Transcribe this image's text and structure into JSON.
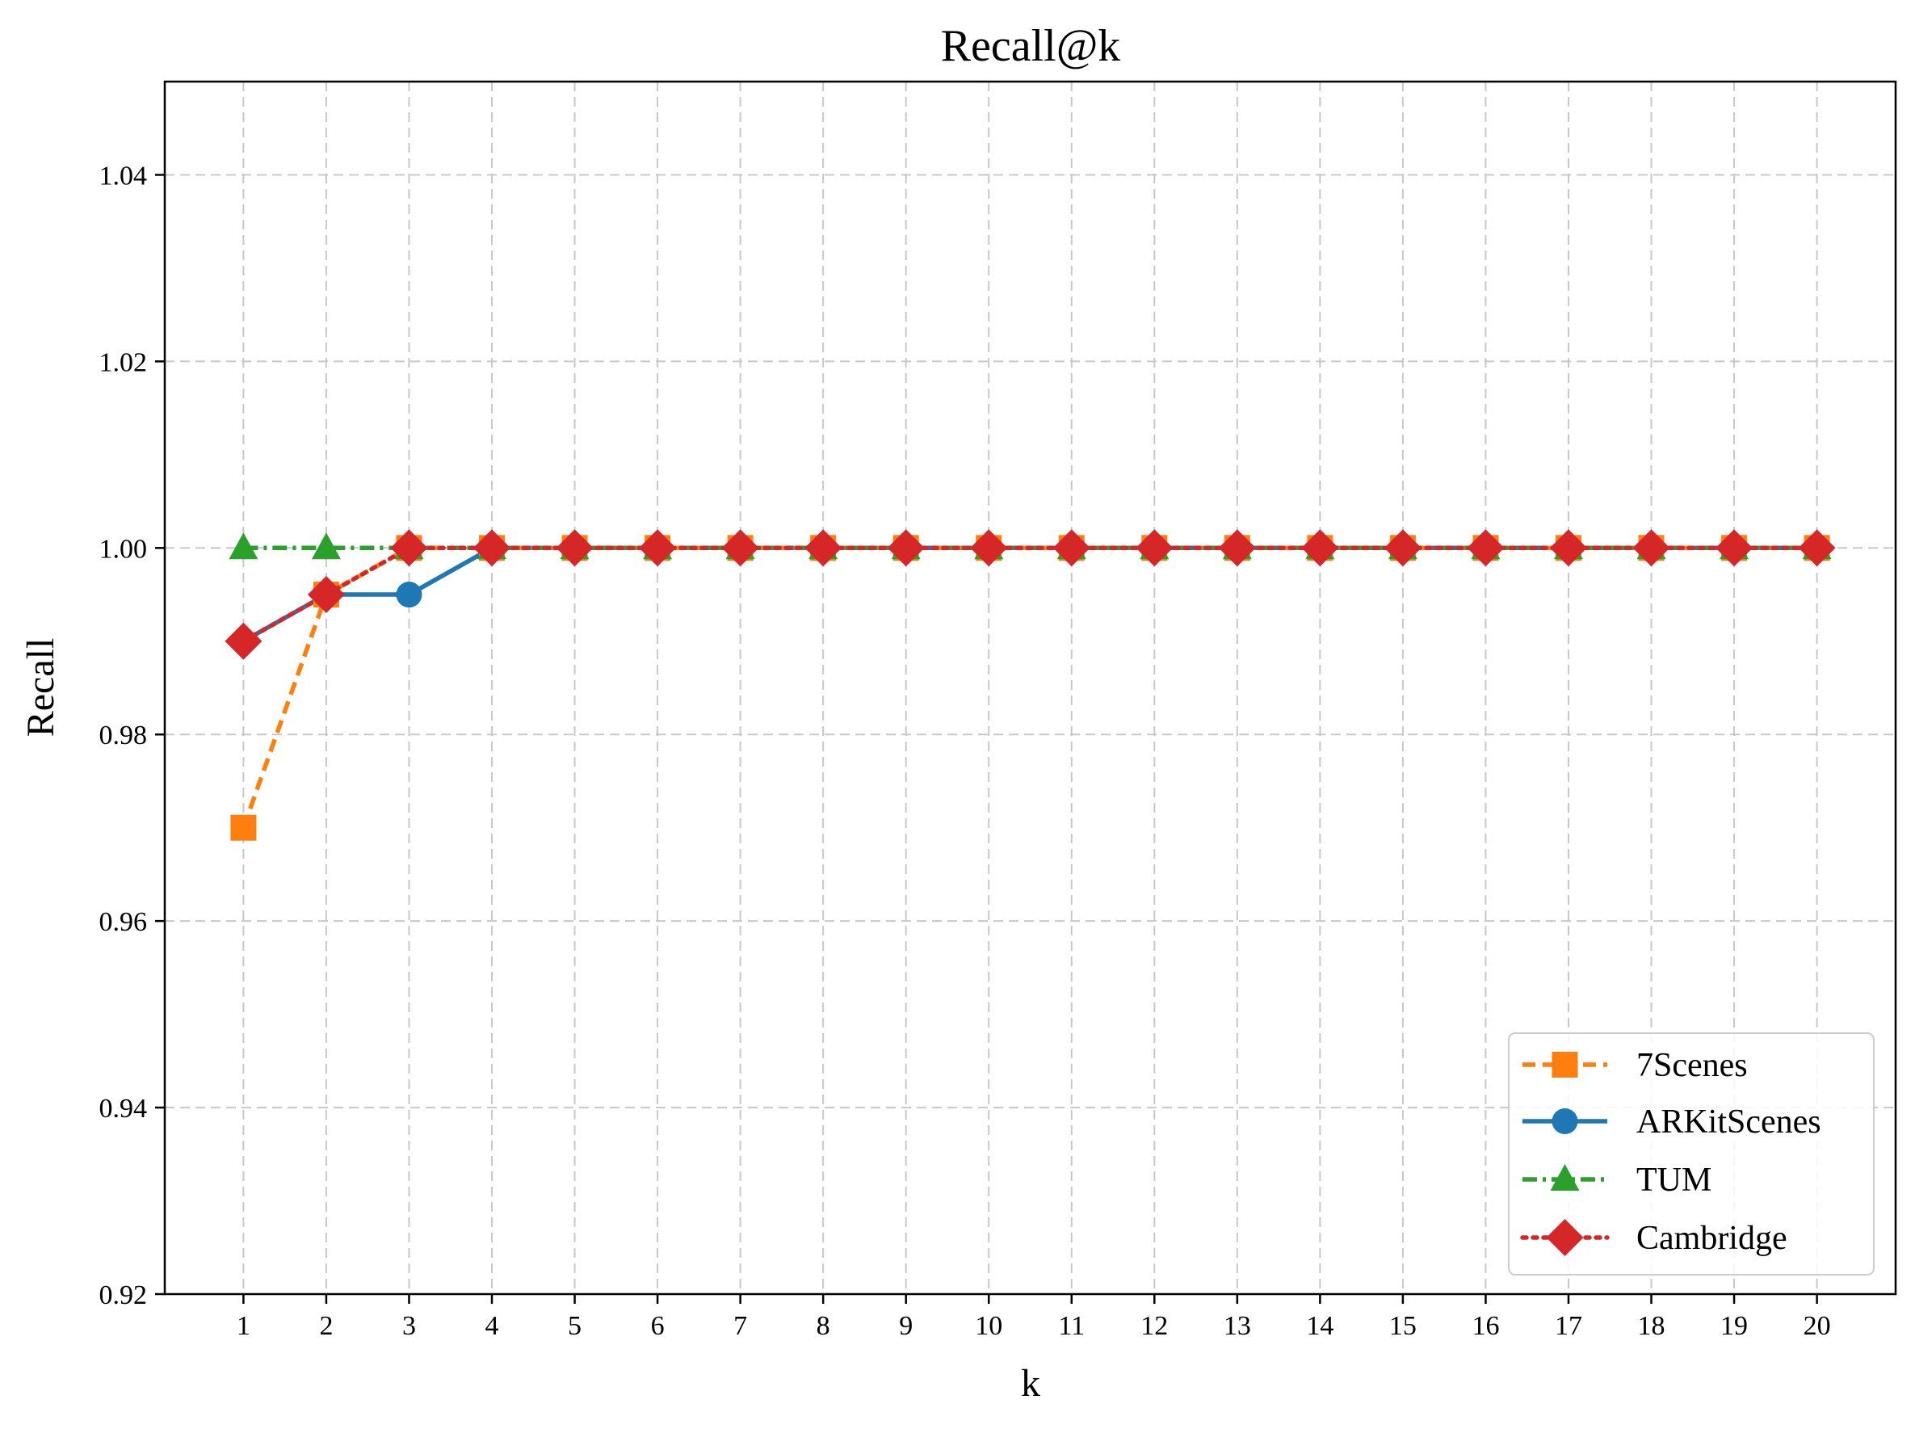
{
  "chart_data": {
    "type": "line",
    "title": "Recall@k",
    "xlabel": "k",
    "ylabel": "Recall",
    "x": [
      1,
      2,
      3,
      4,
      5,
      6,
      7,
      8,
      9,
      10,
      11,
      12,
      13,
      14,
      15,
      16,
      17,
      18,
      19,
      20
    ],
    "xlim": [
      0.05,
      20.95
    ],
    "ylim": [
      0.92,
      1.05
    ],
    "yticks": [
      "0.92",
      "0.94",
      "0.96",
      "0.98",
      "1.00",
      "1.02",
      "1.04"
    ],
    "ytick_values": [
      0.92,
      0.94,
      0.96,
      0.98,
      1.0,
      1.02,
      1.04
    ],
    "grid": true,
    "legend_position": "lower-right",
    "series": [
      {
        "name": "7Scenes",
        "color": "#ff7f0e",
        "linestyle": "dashed",
        "marker": "square",
        "values": [
          0.97,
          0.995,
          1.0,
          1.0,
          1.0,
          1.0,
          1.0,
          1.0,
          1.0,
          1.0,
          1.0,
          1.0,
          1.0,
          1.0,
          1.0,
          1.0,
          1.0,
          1.0,
          1.0,
          1.0
        ]
      },
      {
        "name": "ARKitScenes",
        "color": "#1f77b4",
        "linestyle": "solid",
        "marker": "circle",
        "values": [
          0.99,
          0.995,
          0.995,
          1.0,
          1.0,
          1.0,
          1.0,
          1.0,
          1.0,
          1.0,
          1.0,
          1.0,
          1.0,
          1.0,
          1.0,
          1.0,
          1.0,
          1.0,
          1.0,
          1.0
        ]
      },
      {
        "name": "TUM",
        "color": "#2ca02c",
        "linestyle": "dashdot",
        "marker": "triangle",
        "values": [
          1.0,
          1.0,
          1.0,
          1.0,
          1.0,
          1.0,
          1.0,
          1.0,
          1.0,
          1.0,
          1.0,
          1.0,
          1.0,
          1.0,
          1.0,
          1.0,
          1.0,
          1.0,
          1.0,
          1.0
        ]
      },
      {
        "name": "Cambridge",
        "color": "#d62728",
        "linestyle": "dotted",
        "marker": "diamond",
        "values": [
          0.99,
          0.995,
          1.0,
          1.0,
          1.0,
          1.0,
          1.0,
          1.0,
          1.0,
          1.0,
          1.0,
          1.0,
          1.0,
          1.0,
          1.0,
          1.0,
          1.0,
          1.0,
          1.0,
          1.0
        ]
      }
    ]
  }
}
